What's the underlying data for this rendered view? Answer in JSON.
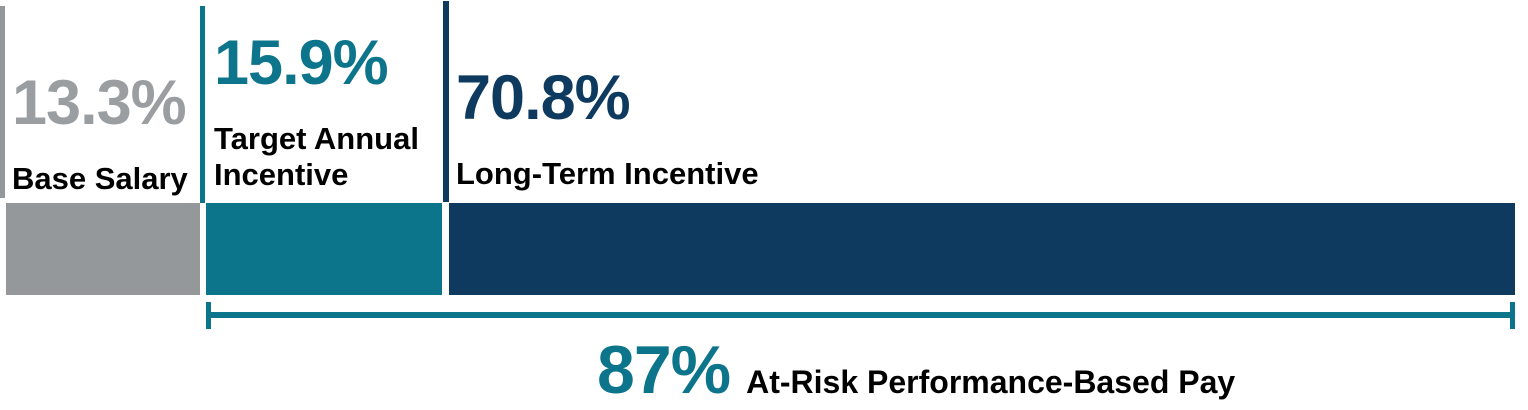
{
  "colors": {
    "gray_bar": "#94989b",
    "gray_text": "#9a9ea1",
    "teal": "#0c748b",
    "navy": "#0e3a5f",
    "label_text": "#000000",
    "background": "#ffffff"
  },
  "chart_data": {
    "type": "bar",
    "subtype": "horizontal-stacked-pay-mix",
    "title": "",
    "unit": "percent",
    "total": 100,
    "axes": "none",
    "legend": "none",
    "grid": false,
    "segments": [
      {
        "label": "Base Salary",
        "value": 13.3,
        "display": "13.3%",
        "color": "#94989b"
      },
      {
        "label": "Target Annual Incentive",
        "value": 15.9,
        "display": "15.9%",
        "color": "#0c748b"
      },
      {
        "label": "Long-Term Incentive",
        "value": 70.8,
        "display": "70.8%",
        "color": "#0e3a5f"
      }
    ],
    "bracket_annotation": {
      "value": 87,
      "display": "87%",
      "label": "At-Risk Performance-Based Pay",
      "spans": [
        "Target Annual Incentive",
        "Long-Term Incentive"
      ]
    }
  },
  "annotations": {
    "base_salary": {
      "pct": "13.3%",
      "label": "Base Salary"
    },
    "target_annual": {
      "pct": "15.9%",
      "label_line1": "Target Annual",
      "label_line2": "Incentive"
    },
    "long_term": {
      "pct": "70.8%",
      "label": "Long-Term Incentive"
    },
    "at_risk": {
      "pct": "87%",
      "label": "At-Risk Performance-Based Pay"
    }
  }
}
